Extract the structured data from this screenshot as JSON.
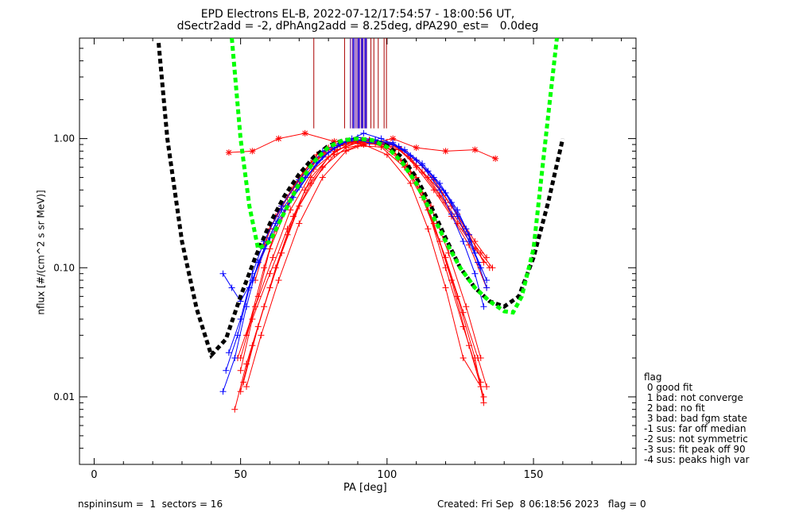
{
  "header": {
    "title_line1": "EPD Electrons EL-B, 2022-07-12/17:54:57 - 18:00:56 UT,",
    "title_line2": "dSectr2add = -2, dPhAng2add = 8.25deg, dPA290_est=   0.0deg"
  },
  "footer": {
    "left": "nspininsum =  1  sectors = 16",
    "right": "Created: Fri Sep  8 06:18:56 2023   flag = 0"
  },
  "legend": {
    "title": "flag",
    "items": [
      " 0 good fit",
      " 1 bad: not converge",
      " 2 bad: no fit",
      " 3 bad: bad fgm state",
      "-1 sus: far off median",
      "-2 sus: not symmetric",
      "-3 sus: fit peak off 90",
      "-4 sus: peaks high var"
    ]
  },
  "colors": {
    "good": "#0000ff",
    "suspect": "#ff0000",
    "fit_black": "#000000",
    "fit_green": "#00ff00",
    "marker_purple": "#6a1b9a",
    "marker_blue": "#1a1aff",
    "marker_red": "#aa0000"
  },
  "chart_data": {
    "type": "line",
    "title": "EPD Electrons EL-B, 2022-07-12/17:54:57 - 18:00:56 UT,",
    "subtitle": "dSectr2add = -2, dPhAng2add = 8.25deg, dPA290_est=   0.0deg",
    "xlabel": "PA [deg]",
    "ylabel": "nflux [#/(cm^2 s sr MeV)]",
    "xlim": [
      -5,
      185
    ],
    "ylim": [
      0.003,
      6
    ],
    "yscale": "log",
    "x_ticks": [
      0,
      50,
      100,
      150
    ],
    "x_tick_labels": [
      "0",
      "50",
      "100",
      "150"
    ],
    "y_ticks": [
      0.01,
      0.1,
      1.0
    ],
    "y_tick_labels": [
      "0.01",
      "0.10",
      "1.00"
    ],
    "legend_position": "lower-right outside",
    "fits": [
      {
        "style": "black-dashed",
        "x": [
          22,
          25,
          30,
          35,
          40,
          45,
          50,
          55,
          60,
          65,
          70,
          75,
          80,
          85,
          90,
          95,
          100,
          105,
          110,
          115,
          120,
          125,
          130,
          135,
          140,
          145,
          150,
          155,
          160
        ],
        "y": [
          5.5,
          1.0,
          0.16,
          0.048,
          0.021,
          0.028,
          0.06,
          0.12,
          0.22,
          0.36,
          0.53,
          0.72,
          0.88,
          0.97,
          1.0,
          0.97,
          0.88,
          0.72,
          0.5,
          0.3,
          0.17,
          0.1,
          0.07,
          0.055,
          0.05,
          0.06,
          0.12,
          0.32,
          1.0
        ]
      },
      {
        "style": "green-dashed",
        "x": [
          47,
          50,
          53,
          56,
          60,
          65,
          70,
          75,
          80,
          85,
          90,
          95,
          100,
          105,
          110,
          115,
          120,
          125,
          130,
          135,
          140,
          143,
          146,
          150,
          155,
          158
        ],
        "y": [
          6.0,
          1.0,
          0.3,
          0.14,
          0.16,
          0.27,
          0.45,
          0.66,
          0.86,
          0.97,
          1.0,
          0.97,
          0.86,
          0.66,
          0.45,
          0.27,
          0.16,
          0.1,
          0.07,
          0.055,
          0.046,
          0.045,
          0.06,
          0.14,
          1.5,
          6.0
        ]
      }
    ],
    "series_good": [
      {
        "x": [
          44,
          48,
          52,
          56,
          62,
          70,
          78,
          84,
          90,
          96,
          104,
          112,
          118,
          122,
          126,
          130,
          133
        ],
        "y": [
          0.011,
          0.02,
          0.05,
          0.11,
          0.22,
          0.42,
          0.72,
          0.9,
          1.02,
          0.98,
          0.87,
          0.62,
          0.4,
          0.26,
          0.16,
          0.09,
          0.05
        ]
      },
      {
        "x": [
          45,
          49,
          53,
          58,
          64,
          72,
          80,
          86,
          92,
          98,
          106,
          112,
          118,
          124,
          128,
          131,
          134
        ],
        "y": [
          0.016,
          0.03,
          0.07,
          0.14,
          0.28,
          0.5,
          0.78,
          0.95,
          1.1,
          1.0,
          0.82,
          0.64,
          0.45,
          0.28,
          0.18,
          0.11,
          0.07
        ]
      },
      {
        "x": [
          44,
          47,
          50,
          54,
          60,
          68,
          76,
          82,
          88,
          94,
          102,
          108,
          114,
          120,
          124,
          128,
          132
        ],
        "y": [
          0.09,
          0.07,
          0.055,
          0.08,
          0.17,
          0.35,
          0.65,
          0.85,
          1.0,
          0.93,
          0.9,
          0.74,
          0.56,
          0.38,
          0.25,
          0.16,
          0.1
        ]
      },
      {
        "x": [
          46,
          50,
          54,
          58,
          64,
          70,
          78,
          84,
          90,
          96,
          102,
          110,
          116,
          122,
          127,
          130,
          134
        ],
        "y": [
          0.022,
          0.04,
          0.09,
          0.16,
          0.3,
          0.48,
          0.8,
          0.92,
          0.98,
          0.96,
          0.93,
          0.68,
          0.5,
          0.32,
          0.2,
          0.13,
          0.08
        ]
      }
    ],
    "series_suspect": [
      {
        "x": [
          46,
          54,
          63,
          72,
          82,
          92,
          102,
          110,
          120,
          130,
          137
        ],
        "y": [
          0.78,
          0.8,
          1.0,
          1.1,
          0.95,
          0.9,
          1.0,
          0.85,
          0.8,
          0.82,
          0.7
        ]
      },
      {
        "x": [
          48,
          52,
          58,
          64,
          70,
          78,
          86,
          92,
          100,
          108,
          114,
          120,
          126,
          132
        ],
        "y": [
          0.008,
          0.018,
          0.05,
          0.13,
          0.3,
          0.6,
          0.85,
          0.9,
          0.75,
          0.45,
          0.2,
          0.07,
          0.02,
          0.012
        ]
      },
      {
        "x": [
          50,
          54,
          60,
          66,
          72,
          80,
          88,
          94,
          102,
          110,
          116,
          122,
          128,
          133
        ],
        "y": [
          0.011,
          0.025,
          0.07,
          0.18,
          0.4,
          0.72,
          0.95,
          0.98,
          0.8,
          0.5,
          0.22,
          0.08,
          0.025,
          0.01
        ]
      },
      {
        "x": [
          51,
          56,
          62,
          68,
          74,
          82,
          90,
          96,
          104,
          112,
          118,
          124,
          130,
          133
        ],
        "y": [
          0.013,
          0.035,
          0.1,
          0.25,
          0.5,
          0.8,
          0.93,
          0.95,
          0.7,
          0.38,
          0.16,
          0.06,
          0.02,
          0.009
        ]
      },
      {
        "x": [
          50,
          56,
          60,
          66,
          72,
          80,
          88,
          96,
          104,
          110,
          116,
          122,
          128,
          134
        ],
        "y": [
          0.02,
          0.06,
          0.14,
          0.3,
          0.55,
          0.85,
          0.95,
          0.92,
          0.85,
          0.6,
          0.4,
          0.25,
          0.15,
          0.07
        ]
      },
      {
        "x": [
          52,
          58,
          62,
          68,
          76,
          84,
          92,
          100,
          106,
          112,
          118,
          124,
          130,
          135
        ],
        "y": [
          0.03,
          0.1,
          0.2,
          0.38,
          0.68,
          0.9,
          0.96,
          0.94,
          0.8,
          0.55,
          0.36,
          0.22,
          0.14,
          0.1
        ]
      },
      {
        "x": [
          55,
          60,
          64,
          70,
          76,
          84,
          90,
          98,
          104,
          110,
          118,
          124,
          130,
          134
        ],
        "y": [
          0.08,
          0.2,
          0.3,
          0.5,
          0.75,
          0.88,
          0.92,
          0.9,
          0.82,
          0.62,
          0.4,
          0.26,
          0.16,
          0.12
        ]
      },
      {
        "x": [
          50,
          54,
          60,
          66,
          74,
          82,
          90,
          98,
          106,
          112,
          120,
          126,
          131,
          134
        ],
        "y": [
          0.016,
          0.04,
          0.09,
          0.2,
          0.45,
          0.75,
          0.88,
          0.86,
          0.6,
          0.35,
          0.12,
          0.045,
          0.02,
          0.012
        ]
      },
      {
        "x": [
          49,
          55,
          61,
          67,
          75,
          83,
          91,
          99,
          107,
          115,
          121,
          127,
          132
        ],
        "y": [
          0.02,
          0.05,
          0.12,
          0.28,
          0.58,
          0.82,
          0.95,
          0.9,
          0.62,
          0.3,
          0.13,
          0.05,
          0.02
        ]
      },
      {
        "x": [
          58,
          62,
          68,
          74,
          80,
          88,
          96,
          104,
          110,
          116,
          122,
          128,
          133
        ],
        "y": [
          0.15,
          0.25,
          0.42,
          0.65,
          0.82,
          0.95,
          0.96,
          0.86,
          0.68,
          0.48,
          0.3,
          0.18,
          0.11
        ]
      },
      {
        "x": [
          52,
          57,
          63,
          70,
          78,
          86,
          94,
          102,
          108,
          114,
          120,
          126,
          132
        ],
        "y": [
          0.012,
          0.03,
          0.08,
          0.22,
          0.5,
          0.8,
          0.93,
          0.82,
          0.55,
          0.28,
          0.1,
          0.035,
          0.013
        ]
      },
      {
        "x": [
          60,
          66,
          72,
          78,
          86,
          94,
          102,
          108,
          114,
          120,
          126,
          132,
          136
        ],
        "y": [
          0.2,
          0.35,
          0.55,
          0.75,
          0.92,
          0.97,
          0.9,
          0.7,
          0.5,
          0.32,
          0.2,
          0.13,
          0.1
        ]
      }
    ],
    "vertical_markers": {
      "purple": [
        87.5,
        88.2,
        88.8,
        89.4,
        90.0,
        90.6,
        91.2,
        91.8,
        92.4,
        93.0
      ],
      "blue": [
        88.6,
        90.3,
        91.5,
        92.7
      ],
      "red": [
        75.0,
        85.5,
        94.5,
        95.5,
        97.0,
        99.0,
        99.8
      ],
      "y_top": 6,
      "y_bottom": 1.2
    }
  }
}
